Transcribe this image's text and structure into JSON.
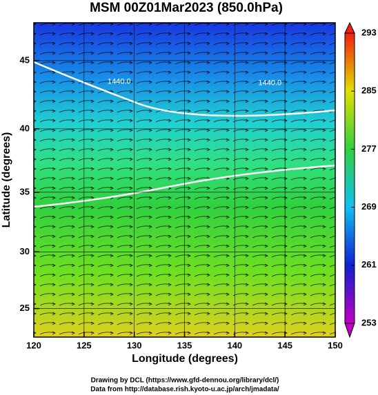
{
  "chart_data": {
    "type": "map",
    "title": "MSM 00Z01Mar2023 (850.0hPa)",
    "x_label": "Longitude (degrees)",
    "y_label": "Latitude  (degrees)",
    "xlim": [
      120,
      150
    ],
    "xticks": [
      120,
      125,
      130,
      135,
      140,
      145,
      150
    ],
    "ylim": [
      22.4,
      47.6
    ],
    "yticks": [
      25,
      30,
      35,
      40,
      45
    ],
    "y_scale": "mercator",
    "grid": true,
    "annotations": [
      "1440.0",
      "1440.0"
    ],
    "colorbar": {
      "lim": [
        253,
        293
      ],
      "ticks": [
        253,
        261,
        269,
        277,
        285,
        293
      ],
      "colors": [
        "#c000c0",
        "#1020d0",
        "#10c0f0",
        "#30d040",
        "#e0e000",
        "#f02010"
      ]
    },
    "footer": [
      "Drawing by DCL (https://www.gfd-dennou.org/library/dcl/)",
      "Data from http://database.rish.kyoto-u.ac.jp/arch/jmadata/"
    ]
  }
}
